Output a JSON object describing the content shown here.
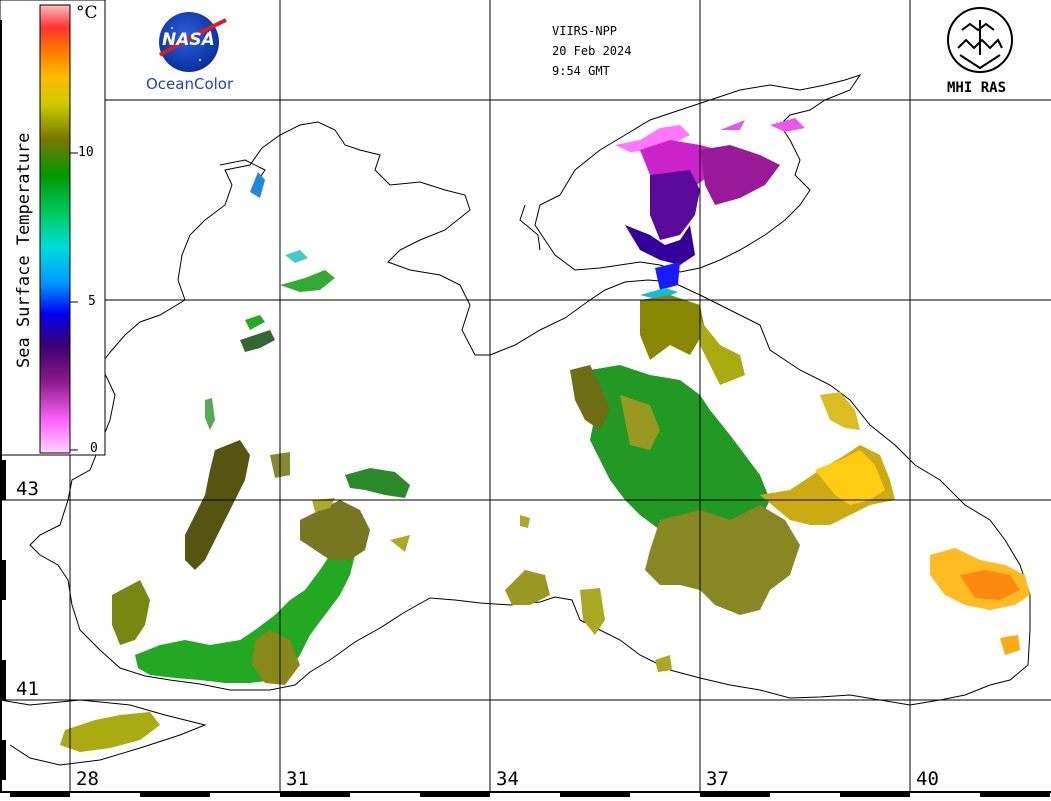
{
  "satellite": {
    "sensor": "VIIRS-NPP",
    "date": "20 Feb 2024",
    "time": "9:54 GMT"
  },
  "logos": {
    "nasa_text": "NASA",
    "oceancolor": "OceanColor",
    "mhi": "MHI RAS"
  },
  "colorbar": {
    "title": "Sea Surface Temperature",
    "unit": "°C",
    "ticks": [
      "0",
      "5",
      "10"
    ],
    "range": [
      0,
      15
    ],
    "colors": [
      "#ffd5ff",
      "#ff66ff",
      "#8a1a8a",
      "#3a0070",
      "#0000ee",
      "#0099ff",
      "#00dddd",
      "#00cc66",
      "#009900",
      "#777700",
      "#cccc00",
      "#ffbb00",
      "#ff7700",
      "#ff3333",
      "#ffbbbb"
    ]
  },
  "grid": {
    "longitudes": [
      "28",
      "31",
      "34",
      "37",
      "40"
    ],
    "latitudes": [
      "43",
      "41"
    ]
  }
}
